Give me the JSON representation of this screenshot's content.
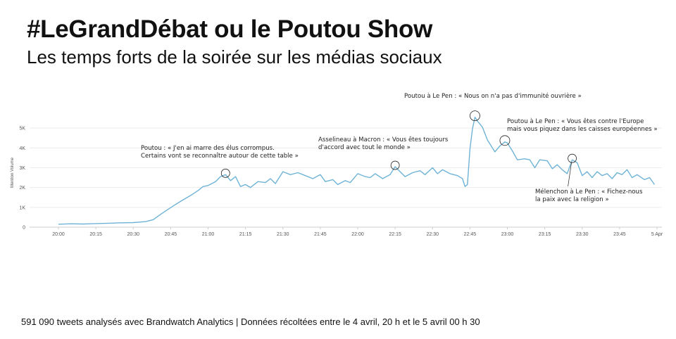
{
  "title": "#LeGrandDébat ou le Poutou Show",
  "subtitle": "Les temps forts de la soirée sur les médias sociaux",
  "footer": "591 090 tweets analysés avec Brandwatch Analytics | Données récoltées entre le 4 avril, 20 h et le 5 avril 00 h 30",
  "colors": {
    "line": "#6fb3d6",
    "grid": "#ececec",
    "axis": "#cccccc"
  },
  "chart_data": {
    "type": "line",
    "ylabel": "Mention Volume",
    "xlabel": "",
    "x_start": "20:00",
    "x_end": "00:00",
    "ylim": [
      0,
      5500
    ],
    "yticks": [
      {
        "value": 0,
        "label": "0"
      },
      {
        "value": 1000,
        "label": "1K"
      },
      {
        "value": 2000,
        "label": "2K"
      },
      {
        "value": 3000,
        "label": "3K"
      },
      {
        "value": 4000,
        "label": "4K"
      },
      {
        "value": 5000,
        "label": "5K"
      }
    ],
    "xticks": [
      {
        "time": "20:00",
        "label": "20:00"
      },
      {
        "time": "20:15",
        "label": "20:15"
      },
      {
        "time": "20:30",
        "label": "20:30"
      },
      {
        "time": "20:45",
        "label": "20:45"
      },
      {
        "time": "21:00",
        "label": "21:00"
      },
      {
        "time": "21:15",
        "label": "21:15"
      },
      {
        "time": "21:30",
        "label": "21:30"
      },
      {
        "time": "21:45",
        "label": "21:45"
      },
      {
        "time": "22:00",
        "label": "22:00"
      },
      {
        "time": "22:15",
        "label": "22:15"
      },
      {
        "time": "22:30",
        "label": "22:30"
      },
      {
        "time": "22:45",
        "label": "22:45"
      },
      {
        "time": "23:00",
        "label": "23:00"
      },
      {
        "time": "23:15",
        "label": "23:15"
      },
      {
        "time": "23:30",
        "label": "23:30"
      },
      {
        "time": "23:45",
        "label": "23:45"
      },
      {
        "time": "00:00",
        "label": "5 Apr"
      }
    ],
    "grid": "horizontal",
    "series": [
      {
        "points": [
          [
            "20:00",
            150
          ],
          [
            "20:05",
            170
          ],
          [
            "20:10",
            160
          ],
          [
            "20:15",
            180
          ],
          [
            "20:20",
            200
          ],
          [
            "20:25",
            220
          ],
          [
            "20:30",
            230
          ],
          [
            "20:35",
            280
          ],
          [
            "20:38",
            380
          ],
          [
            "20:41",
            650
          ],
          [
            "20:44",
            900
          ],
          [
            "20:47",
            1150
          ],
          [
            "20:50",
            1380
          ],
          [
            "20:53",
            1600
          ],
          [
            "20:56",
            1850
          ],
          [
            "20:58",
            2050
          ],
          [
            "21:00",
            2100
          ],
          [
            "21:03",
            2300
          ],
          [
            "21:05",
            2550
          ],
          [
            "21:07",
            2650
          ],
          [
            "21:09",
            2350
          ],
          [
            "21:11",
            2550
          ],
          [
            "21:13",
            2050
          ],
          [
            "21:15",
            2150
          ],
          [
            "21:17",
            2000
          ],
          [
            "21:20",
            2300
          ],
          [
            "21:23",
            2250
          ],
          [
            "21:25",
            2450
          ],
          [
            "21:27",
            2200
          ],
          [
            "21:30",
            2800
          ],
          [
            "21:33",
            2650
          ],
          [
            "21:36",
            2750
          ],
          [
            "21:39",
            2600
          ],
          [
            "21:42",
            2450
          ],
          [
            "21:45",
            2650
          ],
          [
            "21:47",
            2300
          ],
          [
            "21:50",
            2400
          ],
          [
            "21:52",
            2150
          ],
          [
            "21:55",
            2350
          ],
          [
            "21:57",
            2250
          ],
          [
            "22:00",
            2700
          ],
          [
            "22:03",
            2550
          ],
          [
            "22:05",
            2500
          ],
          [
            "22:07",
            2700
          ],
          [
            "22:10",
            2450
          ],
          [
            "22:13",
            2650
          ],
          [
            "22:15",
            3050
          ],
          [
            "22:17",
            2800
          ],
          [
            "22:19",
            2550
          ],
          [
            "22:22",
            2750
          ],
          [
            "22:25",
            2850
          ],
          [
            "22:27",
            2650
          ],
          [
            "22:30",
            3000
          ],
          [
            "22:32",
            2700
          ],
          [
            "22:34",
            2900
          ],
          [
            "22:37",
            2700
          ],
          [
            "22:40",
            2600
          ],
          [
            "22:42",
            2450
          ],
          [
            "22:43",
            2050
          ],
          [
            "22:44",
            2150
          ],
          [
            "22:45",
            3950
          ],
          [
            "22:46",
            4950
          ],
          [
            "22:47",
            5550
          ],
          [
            "22:48",
            5350
          ],
          [
            "22:50",
            5050
          ],
          [
            "22:52",
            4400
          ],
          [
            "22:55",
            3800
          ],
          [
            "22:57",
            4100
          ],
          [
            "22:59",
            4300
          ],
          [
            "23:00",
            4250
          ],
          [
            "23:02",
            3850
          ],
          [
            "23:04",
            3400
          ],
          [
            "23:07",
            3450
          ],
          [
            "23:09",
            3400
          ],
          [
            "23:11",
            3000
          ],
          [
            "23:13",
            3400
          ],
          [
            "23:16",
            3350
          ],
          [
            "23:18",
            2950
          ],
          [
            "23:20",
            3150
          ],
          [
            "23:22",
            2900
          ],
          [
            "23:24",
            2700
          ],
          [
            "23:26",
            3400
          ],
          [
            "23:28",
            3250
          ],
          [
            "23:30",
            2600
          ],
          [
            "23:32",
            2800
          ],
          [
            "23:34",
            2500
          ],
          [
            "23:36",
            2800
          ],
          [
            "23:38",
            2600
          ],
          [
            "23:40",
            2700
          ],
          [
            "23:42",
            2450
          ],
          [
            "23:44",
            2750
          ],
          [
            "23:46",
            2650
          ],
          [
            "23:48",
            2900
          ],
          [
            "23:50",
            2500
          ],
          [
            "23:52",
            2650
          ],
          [
            "23:55",
            2400
          ],
          [
            "23:57",
            2500
          ],
          [
            "23:59",
            2150
          ]
        ]
      }
    ],
    "annotations": [
      {
        "time": "21:07",
        "value": 2650,
        "lines": [
          "Poutou : « J'en ai marre des élus corrompus.",
          "Certains vont se reconnaître autour de cette table »"
        ]
      },
      {
        "time": "22:15",
        "value": 3050,
        "lines": [
          "Asselineau à Macron : « Vous êtes toujours",
          "d'accord avec tout le monde »"
        ]
      },
      {
        "time": "22:47",
        "value": 5550,
        "lines": [
          "Poutou à Le Pen : « Nous on n'a pas d'immunité ouvrière »"
        ]
      },
      {
        "time": "22:59",
        "value": 4300,
        "lines": [
          "Poutou à Le Pen : « Vous êtes contre l'Europe",
          "mais vous piquez dans les caisses européennes »"
        ]
      },
      {
        "time": "23:26",
        "value": 3400,
        "lines": [
          "Mélenchon à Le Pen : « Fichez-nous",
          "la paix avec la religion »"
        ]
      }
    ]
  }
}
